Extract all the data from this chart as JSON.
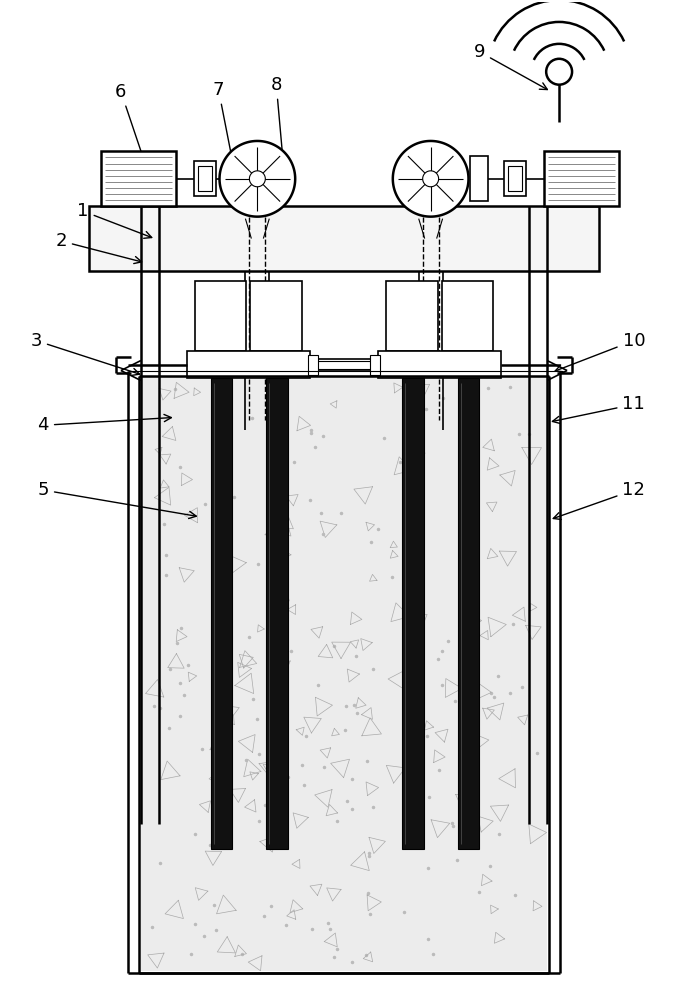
{
  "bg_color": "#ffffff",
  "line_color": "#000000",
  "label_color": "#000000",
  "fig_width": 6.88,
  "fig_height": 10.0
}
